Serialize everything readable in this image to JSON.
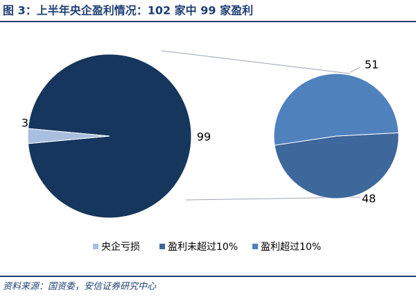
{
  "chart_data": {
    "type": "pie-of-pie",
    "title": "图 3：上半年央企盈利情况：102 家中 99 家盈利",
    "categories": [
      "央企亏损",
      "盈利未超过10%",
      "盈利超过10%"
    ],
    "values": [
      3,
      48,
      51
    ],
    "colors": [
      "#a9bfe0",
      "#3e679c",
      "#4f81bd"
    ],
    "secondary_total": 99,
    "secondary_total_color": "#17365d",
    "source": "资料来源：国资委，安信证券研究中心"
  }
}
